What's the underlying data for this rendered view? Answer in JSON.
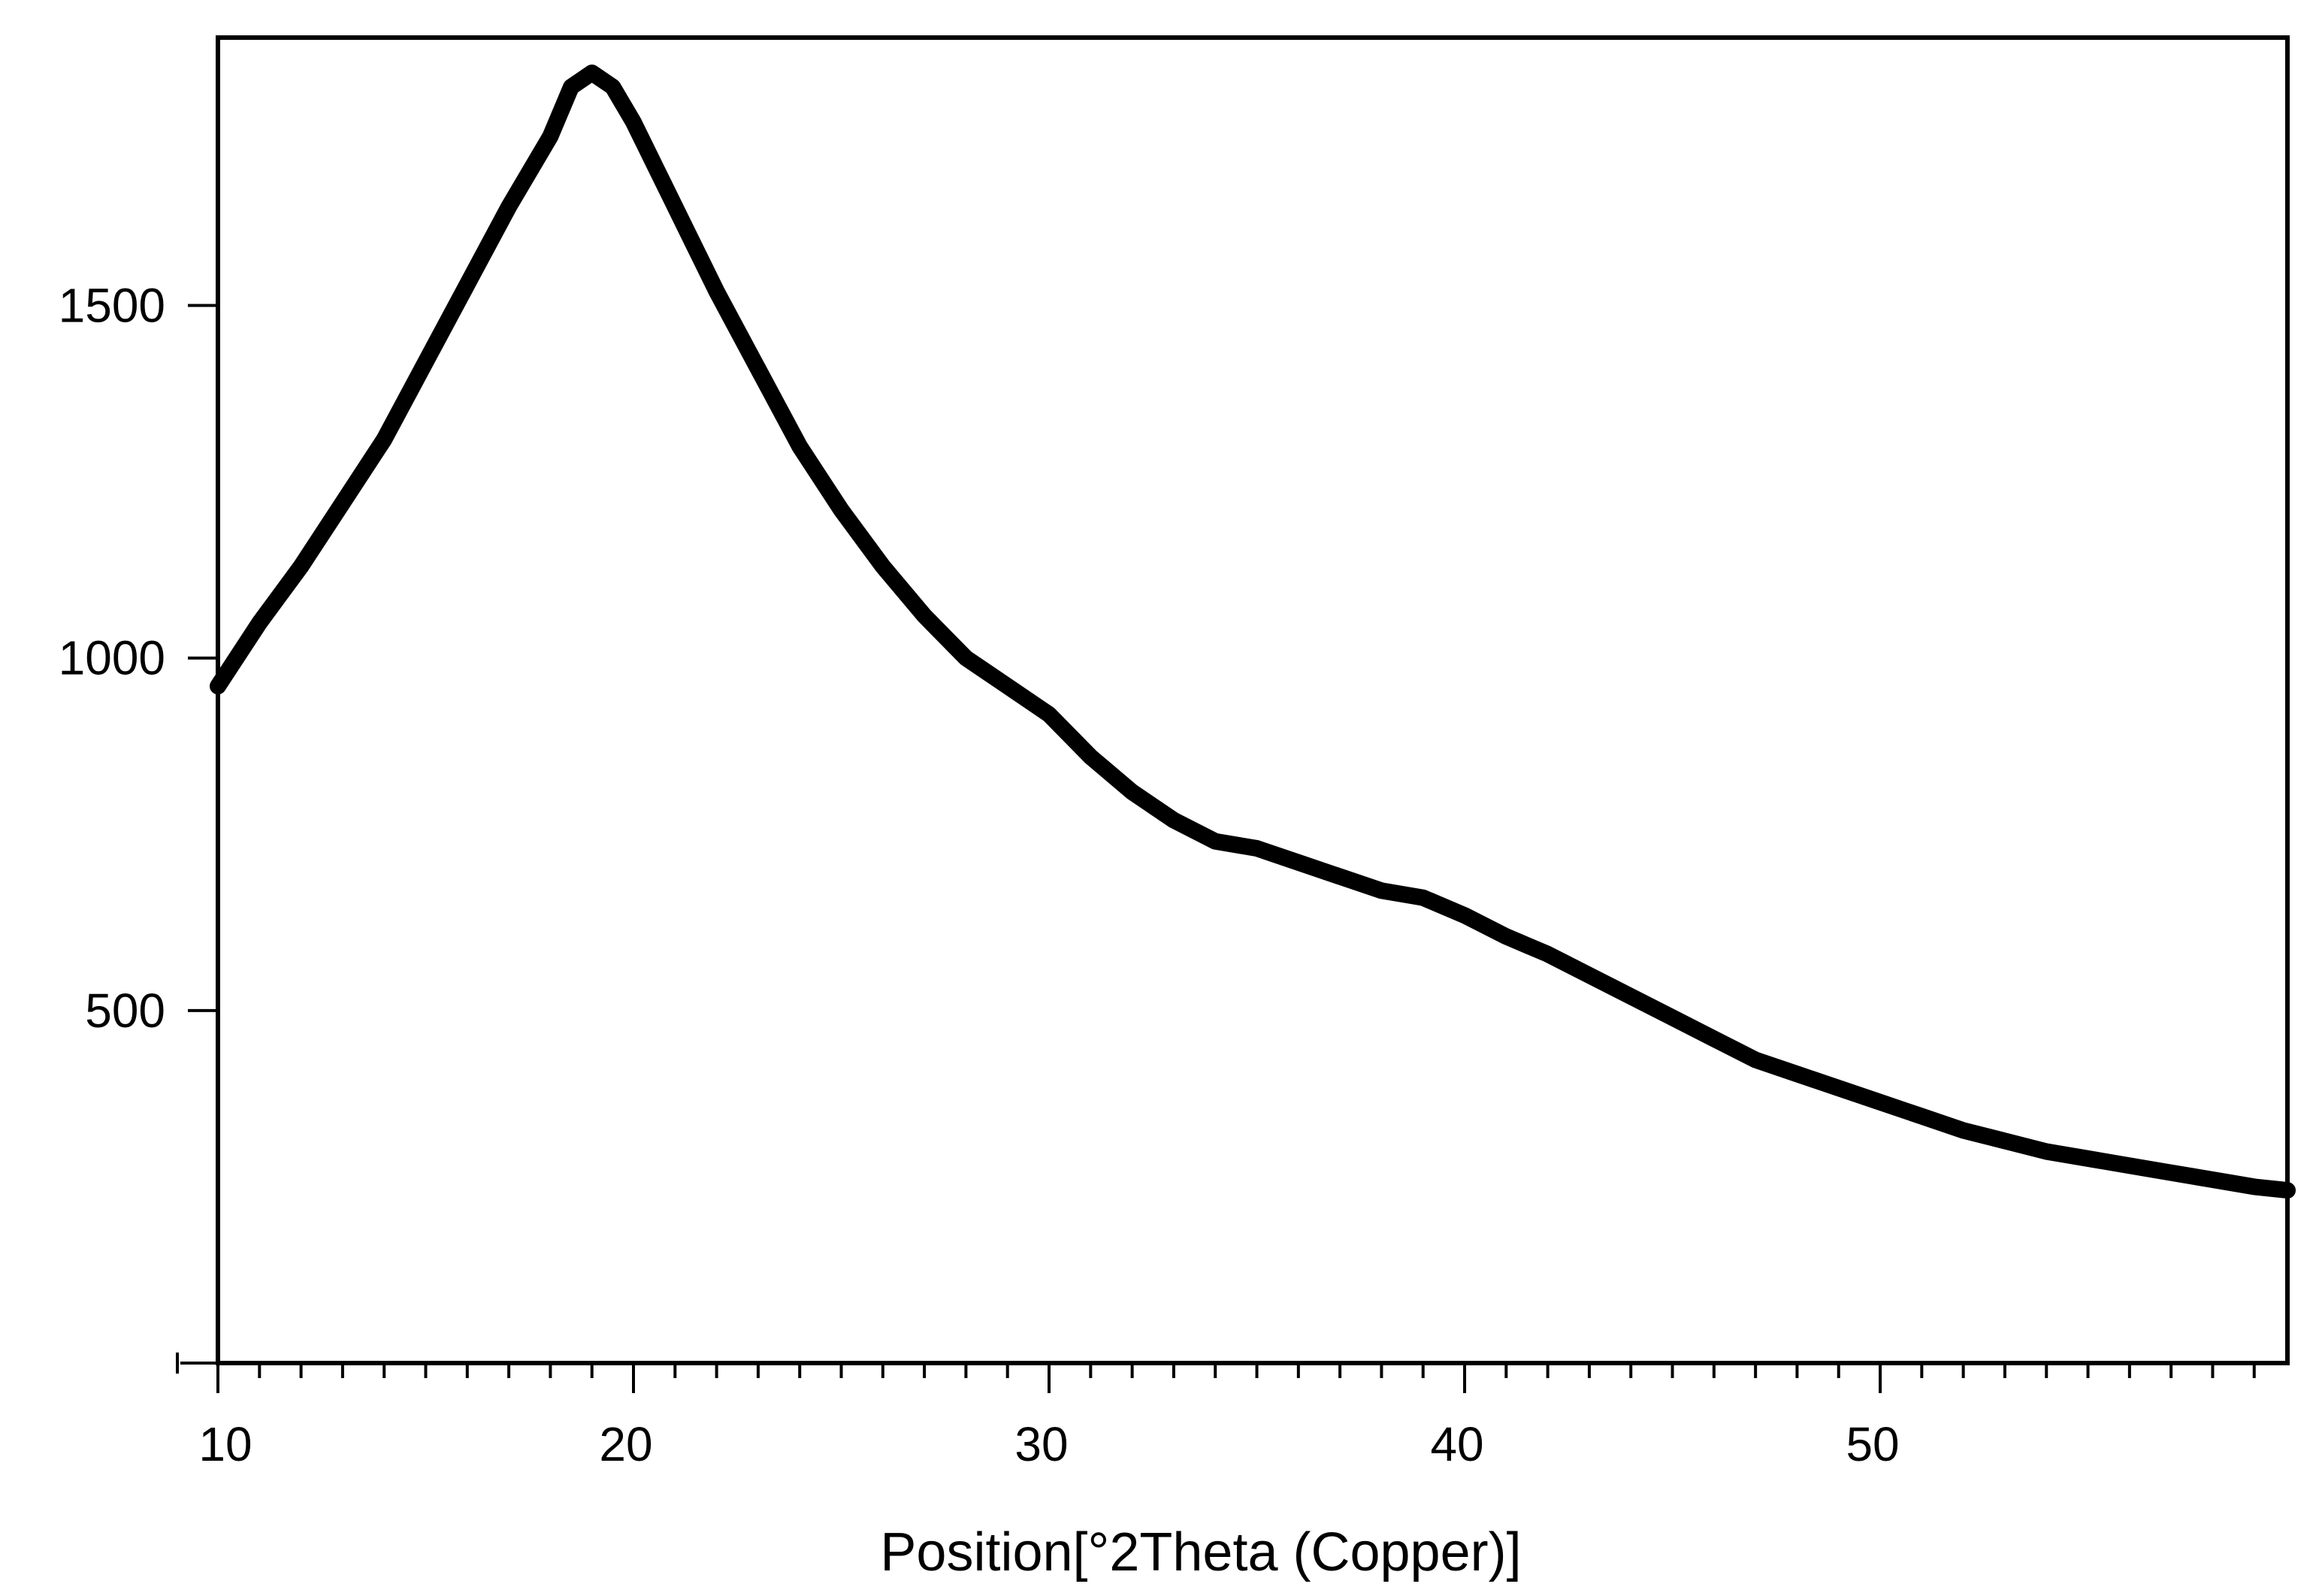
{
  "chart_data": {
    "type": "line",
    "title": "",
    "xlabel": "Position[°2Theta (Copper)]",
    "ylabel": "",
    "xlim": [
      10,
      59.8
    ],
    "ylim": [
      0,
      1880
    ],
    "xticks": [
      10,
      20,
      30,
      40,
      50
    ],
    "xtick_labels": [
      "10",
      "20",
      "30",
      "40",
      "50"
    ],
    "yticks": [
      500,
      1000,
      1500
    ],
    "ytick_labels": [
      "500",
      "1000",
      "1500"
    ],
    "x_minor_step": 1,
    "grid": false,
    "legend": "none",
    "line_color": "#000000",
    "series": [
      {
        "x": [
          10,
          11,
          12,
          13,
          14,
          15,
          16,
          17,
          18,
          18.5,
          19,
          19.5,
          20,
          21,
          22,
          23,
          24,
          25,
          26,
          27,
          28,
          29,
          30,
          31,
          32,
          33,
          34,
          35,
          36,
          37,
          38,
          39,
          40,
          41,
          42,
          43,
          44,
          45,
          46,
          47,
          48,
          49,
          50,
          51,
          52,
          53,
          54,
          55,
          56,
          57,
          58,
          59,
          59.8
        ],
        "y": [
          960,
          1050,
          1130,
          1220,
          1310,
          1420,
          1530,
          1640,
          1740,
          1810,
          1830,
          1810,
          1760,
          1640,
          1520,
          1410,
          1300,
          1210,
          1130,
          1060,
          1000,
          960,
          920,
          860,
          810,
          770,
          740,
          730,
          710,
          690,
          670,
          660,
          635,
          605,
          580,
          550,
          520,
          490,
          460,
          430,
          410,
          390,
          370,
          350,
          330,
          315,
          300,
          290,
          280,
          270,
          260,
          250,
          245
        ]
      }
    ]
  }
}
